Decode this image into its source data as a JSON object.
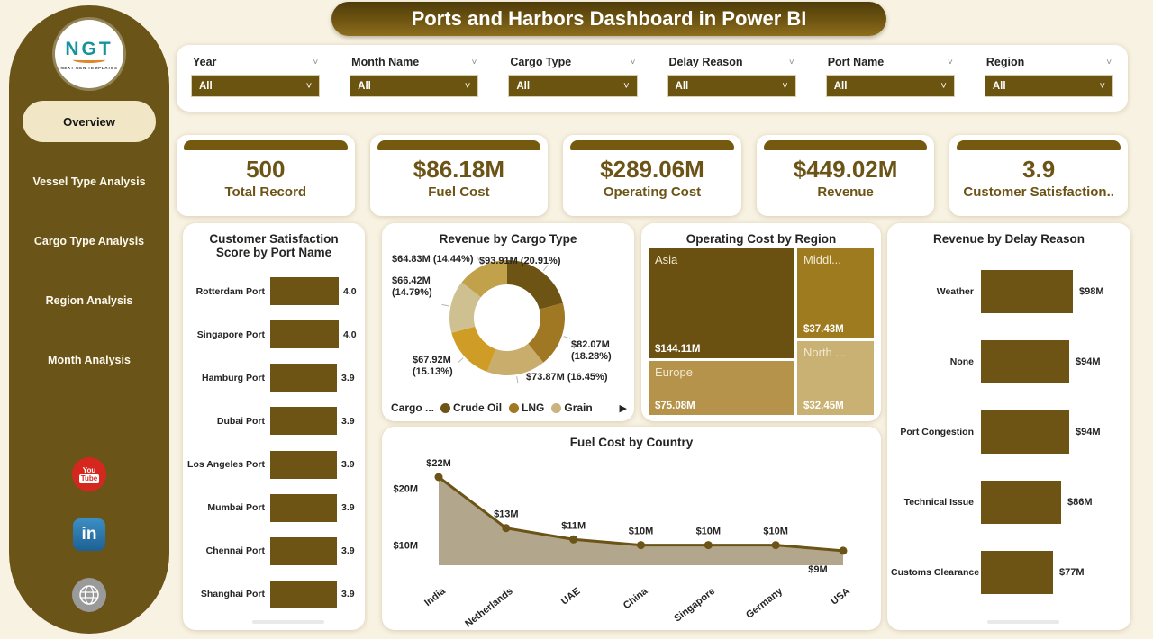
{
  "page": {
    "background": "#f8f2e3",
    "accent": "#6b5416"
  },
  "header": {
    "title": "Ports and Harbors Dashboard in Power BI"
  },
  "logo": {
    "text": "NGT",
    "subtext": "NEXT GEN TEMPLATES"
  },
  "sidebar": {
    "items": [
      {
        "label": "Overview",
        "active": true
      },
      {
        "label": "Vessel Type Analysis",
        "active": false
      },
      {
        "label": "Cargo Type Analysis",
        "active": false
      },
      {
        "label": "Region Analysis",
        "active": false
      },
      {
        "label": "Month Analysis",
        "active": false
      }
    ],
    "social": [
      {
        "name": "youtube",
        "you": "You",
        "tube": "Tube",
        "color": "#d6271e"
      },
      {
        "name": "linkedin",
        "text": "in",
        "color": "#2977b5"
      },
      {
        "name": "website",
        "color": "#9a9a9a"
      }
    ]
  },
  "filters": [
    {
      "label": "Year",
      "value": "All"
    },
    {
      "label": "Month Name",
      "value": "All"
    },
    {
      "label": "Cargo Type",
      "value": "All"
    },
    {
      "label": "Delay Reason",
      "value": "All"
    },
    {
      "label": "Port Name",
      "value": "All"
    },
    {
      "label": "Region",
      "value": "All"
    }
  ],
  "kpis": [
    {
      "value": "500",
      "label": "Total Record"
    },
    {
      "value": "$86.18M",
      "label": "Fuel Cost"
    },
    {
      "value": "$289.06M",
      "label": "Operating Cost"
    },
    {
      "value": "$449.02M",
      "label": "Revenue"
    },
    {
      "value": "3.9",
      "label": "Customer Satisfaction.."
    }
  ],
  "chart_data": [
    {
      "id": "customer-satisfaction-by-port",
      "type": "bar",
      "orientation": "horizontal",
      "title": "Customer Satisfaction Score by Port Name",
      "categories": [
        "Rotterdam Port",
        "Singapore Port",
        "Hamburg Port",
        "Dubai Port",
        "Los Angeles Port",
        "Mumbai Port",
        "Chennai Port",
        "Shanghai Port"
      ],
      "values": [
        4.0,
        4.0,
        3.9,
        3.9,
        3.9,
        3.9,
        3.9,
        3.9
      ],
      "value_labels": [
        "4.0",
        "4.0",
        "3.9",
        "3.9",
        "3.9",
        "3.9",
        "3.9",
        "3.9"
      ],
      "xlim": [
        0,
        4.2
      ],
      "bar_color": "#6e5414"
    },
    {
      "id": "revenue-by-cargo-type",
      "type": "pie",
      "subtype": "donut",
      "title": "Revenue by Cargo Type",
      "slices": [
        {
          "label": "$93.91M (20.91%)",
          "amount": "$93.91M",
          "pct": 20.91,
          "color": "#6e5414"
        },
        {
          "label": "$82.07M\n(18.28%)",
          "amount": "$82.07M",
          "pct": 18.28,
          "color": "#a07722"
        },
        {
          "label": "$73.87M (16.45%)",
          "amount": "$73.87M",
          "pct": 16.45,
          "color": "#c9ad6c"
        },
        {
          "label": "$67.92M\n(15.13%)",
          "amount": "$67.92M",
          "pct": 15.13,
          "color": "#cf9c26"
        },
        {
          "label": "$66.42M\n(14.79%)",
          "amount": "$66.42M",
          "pct": 14.79,
          "color": "#cfc092"
        },
        {
          "label": "$64.83M (14.44%)",
          "amount": "$64.83M",
          "pct": 14.44,
          "color": "#c2a14b"
        }
      ],
      "legend": {
        "title": "Cargo ...",
        "items": [
          {
            "name": "Crude Oil",
            "color": "#6e5414"
          },
          {
            "name": "LNG",
            "color": "#a07722"
          },
          {
            "name": "Grain",
            "color": "#cbb380"
          }
        ],
        "more_icon": "▶"
      }
    },
    {
      "id": "operating-cost-by-region",
      "type": "treemap",
      "title": "Operating Cost by Region",
      "items": [
        {
          "name": "Asia",
          "value": "$144.11M",
          "color": "#6a5112"
        },
        {
          "name": "Europe",
          "value": "$75.08M",
          "color": "#b5934a"
        },
        {
          "name": "Middl...",
          "value": "$37.43M",
          "color": "#9f7b20"
        },
        {
          "name": "North ...",
          "value": "$32.45M",
          "color": "#c9b173"
        }
      ]
    },
    {
      "id": "fuel-cost-by-country",
      "type": "area",
      "title": "Fuel Cost by Country",
      "categories": [
        "India",
        "Netherlands",
        "UAE",
        "China",
        "Singapore",
        "Germany",
        "USA"
      ],
      "values": [
        22,
        13,
        11,
        10,
        10,
        10,
        9
      ],
      "point_labels": [
        "$22M",
        "$13M",
        "$11M",
        "$10M",
        "$10M",
        "$10M",
        "$9M"
      ],
      "yticks": [
        {
          "label": "$20M",
          "value": 20
        },
        {
          "label": "$10M",
          "value": 10
        }
      ],
      "line_color": "#6b5416",
      "fill_color": "#b2a68c"
    },
    {
      "id": "revenue-by-delay-reason",
      "type": "bar",
      "orientation": "horizontal",
      "title": "Revenue by Delay Reason",
      "categories": [
        "Weather",
        "None",
        "Port Congestion",
        "Technical Issue",
        "Customs Clearance"
      ],
      "values": [
        98,
        94,
        94,
        86,
        77
      ],
      "value_labels": [
        "$98M",
        "$94M",
        "$94M",
        "$86M",
        "$77M"
      ],
      "xlim": [
        0,
        100
      ],
      "bar_color": "#6e5414"
    }
  ]
}
